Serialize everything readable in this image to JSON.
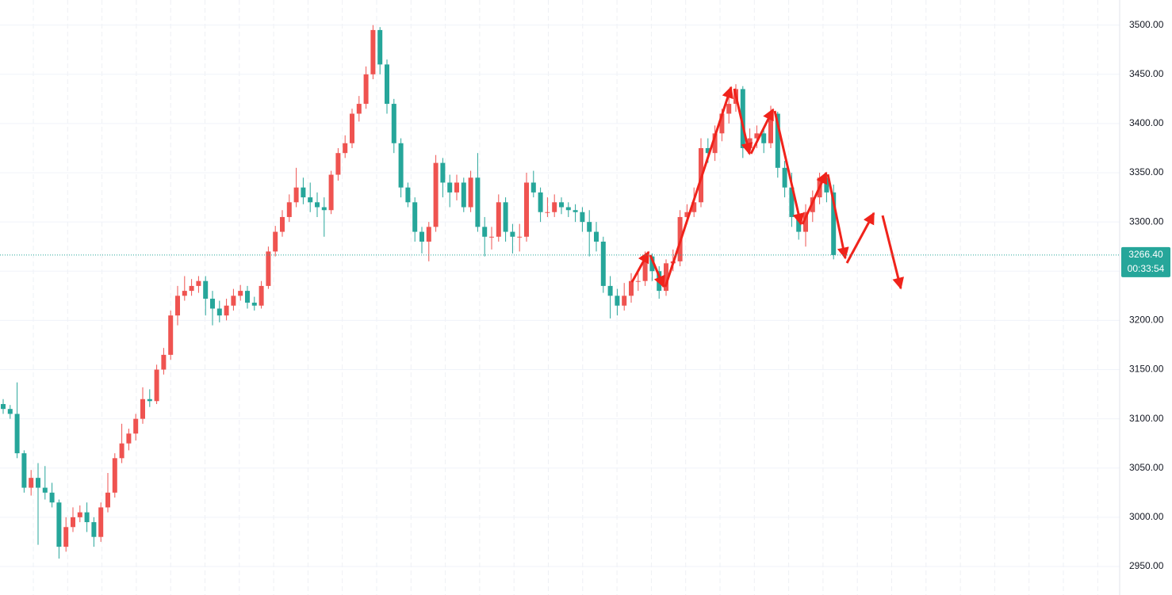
{
  "chart_data": {
    "type": "candlestick",
    "up_color": "#ef5350",
    "down_color": "#26a69a",
    "grid": true,
    "ylim": [
      2921,
      3525.5
    ],
    "yticks": [
      {
        "value": 2950,
        "label": "2950.00"
      },
      {
        "value": 3000,
        "label": "3000.00"
      },
      {
        "value": 3050,
        "label": "3050.00"
      },
      {
        "value": 3100,
        "label": "3100.00"
      },
      {
        "value": 3150,
        "label": "3150.00"
      },
      {
        "value": 3200,
        "label": "3200.00"
      },
      {
        "value": 3250,
        "label": "3250.00"
      },
      {
        "value": 3300,
        "label": "3300.00"
      },
      {
        "value": 3350,
        "label": "3350.00"
      },
      {
        "value": 3400,
        "label": "3400.00"
      },
      {
        "value": 3450,
        "label": "3450.00"
      },
      {
        "value": 3500,
        "label": "3500.00"
      }
    ],
    "last_price": {
      "value": 3266.4,
      "label": "3266.40"
    },
    "countdown": "00:33:54",
    "open": [
      3115,
      3110,
      3105,
      3065,
      3030,
      3040,
      3030,
      3025,
      3015,
      2970,
      2990,
      3000,
      3005,
      2995,
      2980,
      3010,
      3025,
      3060,
      3075,
      3085,
      3100,
      3120,
      3118,
      3150,
      3165,
      3205,
      3225,
      3230,
      3235,
      3240,
      3222,
      3212,
      3205,
      3215,
      3225,
      3230,
      3218,
      3215,
      3235,
      3270,
      3290,
      3305,
      3320,
      3335,
      3325,
      3320,
      3315,
      3312,
      3348,
      3370,
      3380,
      3410,
      3420,
      3450,
      3495,
      3460,
      3420,
      3380,
      3335,
      3320,
      3290,
      3280,
      3295,
      3360,
      3340,
      3330,
      3340,
      3315,
      3345,
      3295,
      3285,
      3285,
      3320,
      3290,
      3285,
      3285,
      3340,
      3330,
      3310,
      3310,
      3320,
      3315,
      3312,
      3310,
      3300,
      3290,
      3280,
      3235,
      3225,
      3215,
      3225,
      3240,
      3240,
      3265,
      3250,
      3230,
      3258,
      3260,
      3305,
      3310,
      3320,
      3375,
      3370,
      3390,
      3410,
      3420,
      3435,
      3375,
      3385,
      3390,
      3380,
      3410,
      3355,
      3335,
      3305,
      3290,
      3310,
      3325,
      3345,
      3330
    ],
    "high": [
      3120,
      3114,
      3137,
      3068,
      3048,
      3055,
      3052,
      3035,
      3018,
      3000,
      3010,
      3012,
      3015,
      3000,
      3015,
      3045,
      3065,
      3095,
      3090,
      3105,
      3132,
      3130,
      3155,
      3172,
      3210,
      3235,
      3245,
      3242,
      3245,
      3245,
      3230,
      3220,
      3222,
      3232,
      3236,
      3235,
      3224,
      3240,
      3275,
      3296,
      3312,
      3328,
      3355,
      3345,
      3340,
      3330,
      3325,
      3352,
      3375,
      3388,
      3415,
      3428,
      3458,
      3500,
      3498,
      3465,
      3425,
      3385,
      3340,
      3325,
      3295,
      3300,
      3368,
      3365,
      3348,
      3348,
      3345,
      3352,
      3370,
      3305,
      3295,
      3328,
      3325,
      3298,
      3298,
      3350,
      3352,
      3335,
      3325,
      3328,
      3325,
      3320,
      3318,
      3315,
      3312,
      3300,
      3285,
      3245,
      3232,
      3238,
      3248,
      3252,
      3270,
      3268,
      3255,
      3262,
      3272,
      3312,
      3318,
      3335,
      3385,
      3385,
      3398,
      3415,
      3428,
      3440,
      3438,
      3395,
      3398,
      3395,
      3418,
      3412,
      3362,
      3350,
      3310,
      3318,
      3332,
      3350,
      3350,
      3338
    ],
    "low": [
      3105,
      3100,
      3060,
      3025,
      3022,
      2972,
      3018,
      3010,
      2958,
      2965,
      2985,
      2995,
      2985,
      2970,
      2975,
      3005,
      3020,
      3055,
      3068,
      3078,
      3095,
      3112,
      3115,
      3145,
      3160,
      3195,
      3220,
      3225,
      3228,
      3205,
      3195,
      3198,
      3200,
      3210,
      3220,
      3212,
      3210,
      3212,
      3232,
      3265,
      3285,
      3300,
      3315,
      3318,
      3310,
      3305,
      3285,
      3308,
      3342,
      3365,
      3375,
      3402,
      3415,
      3445,
      3450,
      3410,
      3370,
      3325,
      3315,
      3280,
      3268,
      3260,
      3290,
      3325,
      3315,
      3322,
      3310,
      3310,
      3290,
      3265,
      3272,
      3280,
      3280,
      3268,
      3270,
      3280,
      3325,
      3300,
      3305,
      3305,
      3308,
      3305,
      3300,
      3290,
      3265,
      3270,
      3228,
      3202,
      3205,
      3210,
      3218,
      3230,
      3235,
      3240,
      3222,
      3225,
      3250,
      3255,
      3298,
      3305,
      3315,
      3360,
      3362,
      3382,
      3400,
      3412,
      3365,
      3368,
      3375,
      3370,
      3375,
      3345,
      3325,
      3295,
      3282,
      3275,
      3300,
      3318,
      3320,
      3262
    ],
    "close": [
      3110,
      3105,
      3065,
      3030,
      3040,
      3030,
      3025,
      3015,
      2970,
      2990,
      3000,
      3005,
      2995,
      2980,
      3010,
      3025,
      3060,
      3075,
      3085,
      3100,
      3120,
      3118,
      3150,
      3165,
      3205,
      3225,
      3230,
      3235,
      3240,
      3222,
      3212,
      3205,
      3215,
      3225,
      3230,
      3218,
      3215,
      3235,
      3270,
      3290,
      3305,
      3320,
      3335,
      3325,
      3320,
      3315,
      3312,
      3348,
      3370,
      3380,
      3410,
      3420,
      3450,
      3495,
      3460,
      3420,
      3380,
      3335,
      3320,
      3290,
      3280,
      3295,
      3360,
      3340,
      3330,
      3340,
      3315,
      3345,
      3295,
      3285,
      3285,
      3320,
      3290,
      3285,
      3285,
      3340,
      3330,
      3310,
      3310,
      3320,
      3315,
      3312,
      3310,
      3300,
      3290,
      3280,
      3235,
      3225,
      3215,
      3225,
      3240,
      3240,
      3265,
      3250,
      3230,
      3258,
      3260,
      3305,
      3310,
      3320,
      3375,
      3370,
      3390,
      3410,
      3420,
      3435,
      3375,
      3385,
      3390,
      3380,
      3410,
      3355,
      3335,
      3305,
      3290,
      3310,
      3325,
      3345,
      3330,
      3266.4
    ]
  }
}
